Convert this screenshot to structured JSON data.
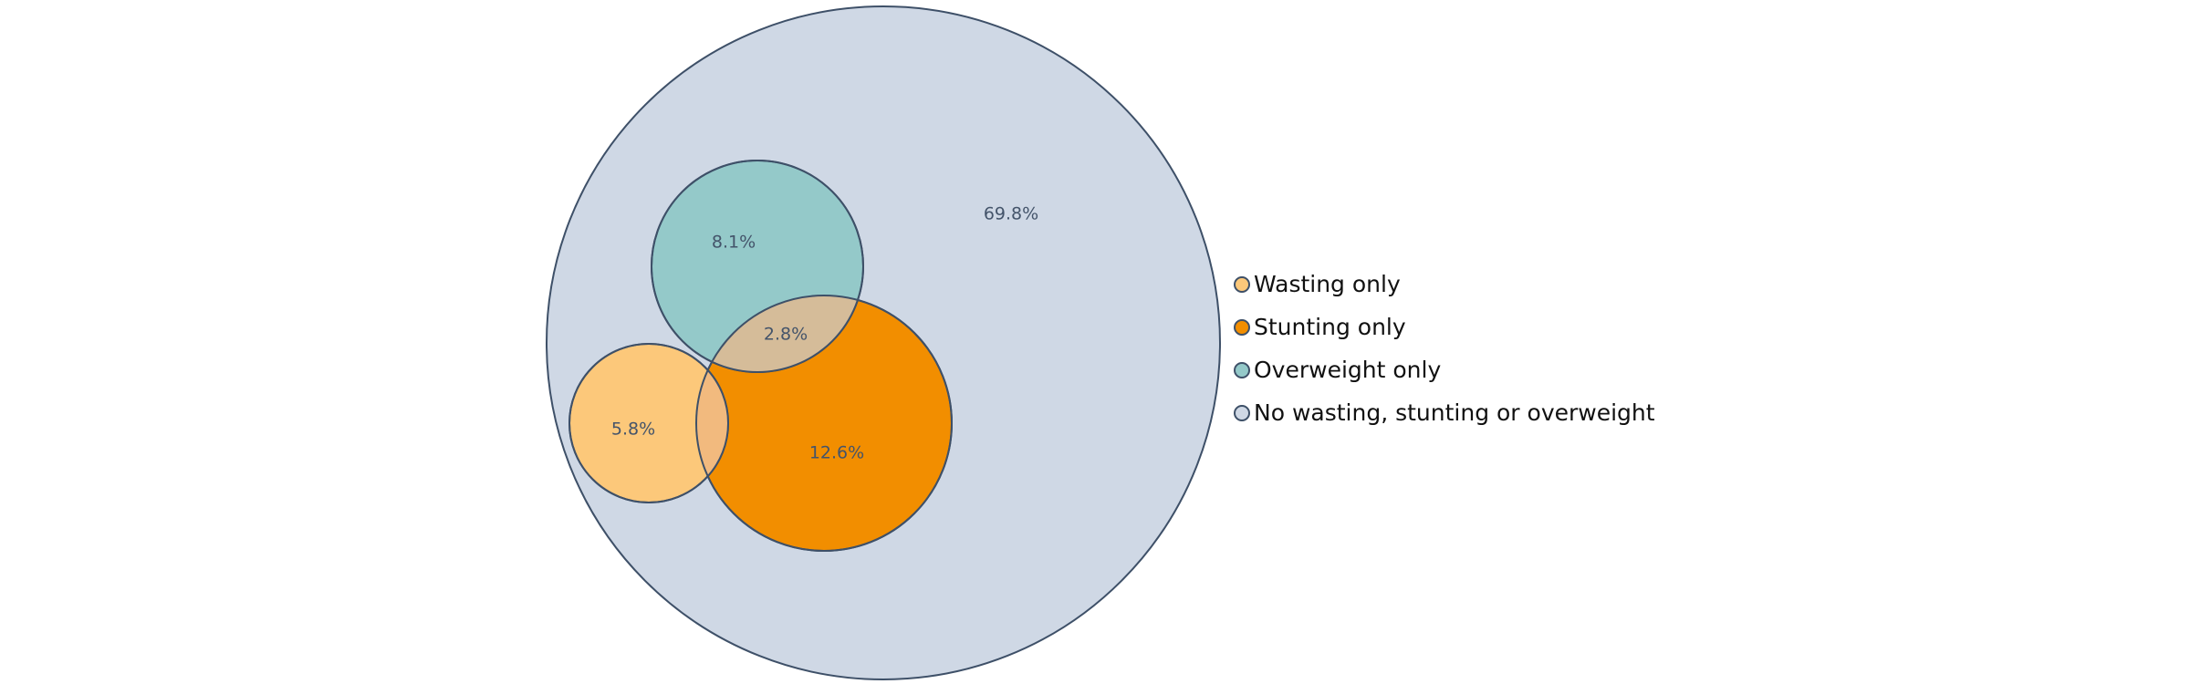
{
  "chart_data": {
    "type": "venn",
    "outline_color": "#3e5068",
    "label_color": "#44546a",
    "sets": [
      {
        "key": "none",
        "name": "No wasting, stunting or overweight",
        "value": 69.8,
        "color": "#cfd8e5"
      },
      {
        "key": "overweight",
        "name": "Overweight only",
        "value": 8.1,
        "color": "#94c9c9"
      },
      {
        "key": "stunting",
        "name": "Stunting only",
        "value": 12.6,
        "color": "#f28e00"
      },
      {
        "key": "wasting",
        "name": "Wasting only",
        "value": 5.8,
        "color": "#fcc87a"
      }
    ],
    "overlaps": [
      {
        "sets": [
          "overweight",
          "stunting"
        ],
        "value": 2.8,
        "color": "#d5bc99"
      },
      {
        "sets": [
          "wasting",
          "stunting"
        ],
        "color": "#f2ba7e"
      }
    ],
    "legend": {
      "placement": "right",
      "entries": [
        {
          "label": "Wasting only",
          "color": "#fcc87a"
        },
        {
          "label": "Stunting only",
          "color": "#f28e00"
        },
        {
          "label": "Overweight only",
          "color": "#94c9c9"
        },
        {
          "label": "No wasting, stunting or overweight",
          "color": "#cfd8e5"
        }
      ]
    }
  }
}
